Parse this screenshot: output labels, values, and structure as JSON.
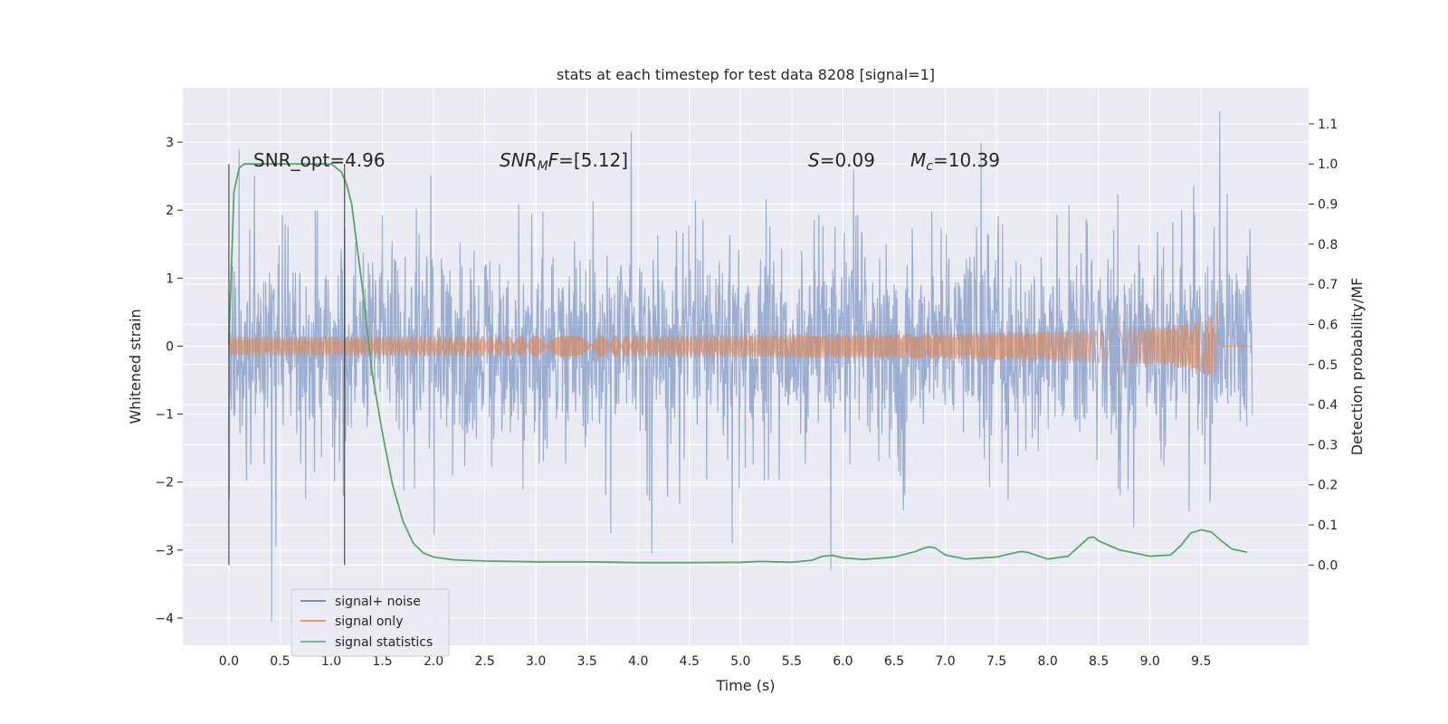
{
  "chart_data": {
    "type": "line",
    "title": "stats at each timestep for test data 8208 [signal=1]",
    "xlabel": "Time (s)",
    "ylabel_left": "Whitened strain",
    "ylabel_right": "Detection probability/MF",
    "xlim": [
      -0.45,
      10.55
    ],
    "ylim_left": [
      -4.4,
      3.8
    ],
    "ylim_right": [
      -0.2,
      1.19
    ],
    "grid": true,
    "legend_position": "lower-left",
    "x_ticks": [
      "0.0",
      "0.5",
      "1.0",
      "1.5",
      "2.0",
      "2.5",
      "3.0",
      "3.5",
      "4.0",
      "4.5",
      "5.0",
      "5.5",
      "6.0",
      "6.5",
      "7.0",
      "7.5",
      "8.0",
      "8.5",
      "9.0",
      "9.5"
    ],
    "y_ticks_left": [
      "3",
      "2",
      "1",
      "0",
      "−1",
      "−2",
      "−3",
      "−4"
    ],
    "y_ticks_right": [
      "1.1",
      "1.0",
      "0.9",
      "0.8",
      "0.7",
      "0.6",
      "0.5",
      "0.4",
      "0.3",
      "0.2",
      "0.1",
      "0.0"
    ],
    "annotations": {
      "snr_opt": "SNR_opt=4.96",
      "snr_mf_sym": "SNR",
      "snr_mf_sub": "M",
      "snr_mf_rest": "F",
      "snr_mf_value": "=[5.12]",
      "s_sym": "S",
      "s_value": "=0.09",
      "mc_sym": "M",
      "mc_sub": "c",
      "mc_value": "=10.39"
    },
    "detection_window": [
      0.0,
      1.13
    ],
    "series": [
      {
        "name": "signal+ noise",
        "color": "#4c72b0",
        "axis": "left",
        "x_range": [
          0.0,
          10.0
        ],
        "typical_amplitude": 1.5,
        "notable_peaks": [
          [
            0.1,
            2.9
          ],
          [
            0.25,
            2.5
          ],
          [
            3.93,
            3.15
          ],
          [
            7.35,
            3.0
          ],
          [
            9.68,
            3.45
          ],
          [
            0.42,
            -4.05
          ],
          [
            0.46,
            -2.95
          ],
          [
            1.12,
            -2.2
          ],
          [
            5.88,
            -3.3
          ],
          [
            3.73,
            -2.75
          ],
          [
            4.13,
            -3.05
          ]
        ]
      },
      {
        "name": "signal only",
        "color": "#dd8452",
        "axis": "left",
        "x_range": [
          0.0,
          10.0
        ],
        "merger_time": 9.65,
        "peak_amplitude": 0.65
      },
      {
        "name": "signal statistics",
        "color": "#55a868",
        "axis": "right",
        "x": [
          0.0,
          0.05,
          0.1,
          0.15,
          0.2,
          0.3,
          0.5,
          0.7,
          0.9,
          1.0,
          1.1,
          1.15,
          1.2,
          1.3,
          1.4,
          1.5,
          1.6,
          1.7,
          1.8,
          1.9,
          2.0,
          2.2,
          2.5,
          3.0,
          3.5,
          4.0,
          4.5,
          5.0,
          5.2,
          5.5,
          5.7,
          5.8,
          5.9,
          6.0,
          6.2,
          6.5,
          6.7,
          6.8,
          6.85,
          6.9,
          7.0,
          7.2,
          7.5,
          7.7,
          7.75,
          7.8,
          8.0,
          8.2,
          8.3,
          8.4,
          8.45,
          8.5,
          8.7,
          9.0,
          9.2,
          9.3,
          9.4,
          9.5,
          9.6,
          9.7,
          9.8,
          9.95
        ],
        "y": [
          0.55,
          0.93,
          0.99,
          1.0,
          1.0,
          1.0,
          1.0,
          1.0,
          1.0,
          1.0,
          0.98,
          0.95,
          0.9,
          0.7,
          0.48,
          0.33,
          0.2,
          0.11,
          0.055,
          0.03,
          0.02,
          0.013,
          0.01,
          0.008,
          0.008,
          0.006,
          0.006,
          0.007,
          0.009,
          0.007,
          0.012,
          0.022,
          0.024,
          0.018,
          0.014,
          0.02,
          0.033,
          0.043,
          0.045,
          0.043,
          0.025,
          0.015,
          0.02,
          0.032,
          0.034,
          0.032,
          0.015,
          0.022,
          0.045,
          0.068,
          0.07,
          0.06,
          0.038,
          0.022,
          0.025,
          0.048,
          0.08,
          0.088,
          0.082,
          0.06,
          0.04,
          0.032
        ]
      }
    ]
  }
}
